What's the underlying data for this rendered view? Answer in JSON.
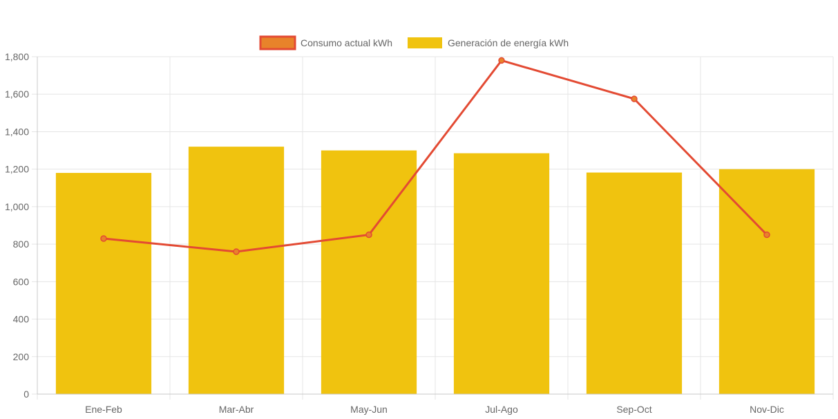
{
  "chart_data": {
    "type": "bar",
    "categories": [
      "Ene-Feb",
      "Mar-Abr",
      "May-Jun",
      "Jul-Ago",
      "Sep-Oct",
      "Nov-Dic"
    ],
    "series": [
      {
        "name": "Consumo actual kWh",
        "type": "line",
        "values": [
          830,
          760,
          850,
          1780,
          1575,
          850
        ],
        "color": "#e34a33",
        "fill_color": "#e8832a"
      },
      {
        "name": "Generación de energía kWh",
        "type": "bar",
        "values": [
          1180,
          1320,
          1300,
          1285,
          1182,
          1200
        ],
        "color": "#f0c30f"
      }
    ],
    "ylim": [
      0,
      1800
    ],
    "y_ticks": [
      "0",
      "200",
      "400",
      "600",
      "800",
      "1,000",
      "1,200",
      "1,400",
      "1,600",
      "1,800"
    ],
    "y_tick_values": [
      0,
      200,
      400,
      600,
      800,
      1000,
      1200,
      1400,
      1600,
      1800
    ],
    "grid": true,
    "legend_position": "top-center",
    "grid_color": "#e5e5e5",
    "axis_color": "#c8c8c8"
  }
}
